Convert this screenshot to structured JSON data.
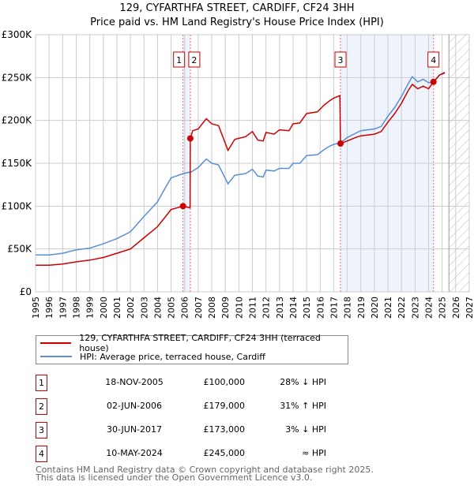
{
  "chart_data": {
    "type": "line",
    "title": "129, CYFARTHFA STREET, CARDIFF, CF24 3HH",
    "subtitle": "Price paid vs. HM Land Registry's House Price Index (HPI)",
    "xlim": [
      1995,
      2027
    ],
    "ylim": [
      0,
      300000
    ],
    "x_ticks": [
      "1995",
      "1996",
      "1997",
      "1998",
      "1999",
      "2000",
      "2001",
      "2002",
      "2003",
      "2004",
      "2005",
      "2006",
      "2007",
      "2008",
      "2009",
      "2010",
      "2011",
      "2012",
      "2013",
      "2014",
      "2015",
      "2016",
      "2017",
      "2018",
      "2019",
      "2020",
      "2021",
      "2022",
      "2023",
      "2024",
      "2025",
      "2026",
      "2027"
    ],
    "y_ticks": [
      {
        "v": 0,
        "label": "£0"
      },
      {
        "v": 50000,
        "label": "£50K"
      },
      {
        "v": 100000,
        "label": "£100K"
      },
      {
        "v": 150000,
        "label": "£150K"
      },
      {
        "v": 200000,
        "label": "£200K"
      },
      {
        "v": 250000,
        "label": "£250K"
      },
      {
        "v": 300000,
        "label": "£300K"
      }
    ],
    "grid": true,
    "forecast_hatch_from": 2025.5,
    "series": [
      {
        "name": "129, CYFARTHFA STREET, CARDIFF, CF24 3HH (terraced house)",
        "color": "#cc0000",
        "x": [
          1995,
          1996,
          1997,
          1998,
          1999,
          2000,
          2001,
          2002,
          2003,
          2004,
          2004.6,
          2005,
          2005.88,
          2006.4,
          2006.42,
          2006.6,
          2007,
          2007.6,
          2008,
          2008.5,
          2009.2,
          2009.7,
          2010.5,
          2011,
          2011.4,
          2011.8,
          2012,
          2012.6,
          2013,
          2013.7,
          2014,
          2014.5,
          2015,
          2015.8,
          2016.3,
          2016.7,
          2017,
          2017.45,
          2017.5,
          2018,
          2018.6,
          2019,
          2020,
          2020.5,
          2021,
          2021.5,
          2022,
          2022.5,
          2022.8,
          2023.2,
          2023.6,
          2024,
          2024.36,
          2024.8,
          2025.2
        ],
        "y": [
          31000,
          31000,
          32500,
          35000,
          37000,
          40000,
          45000,
          50000,
          63000,
          76000,
          88000,
          96000,
          100000,
          98000,
          179000,
          188000,
          190000,
          202000,
          196000,
          194000,
          165000,
          178000,
          181000,
          187000,
          177000,
          176000,
          186000,
          184000,
          189000,
          188000,
          196000,
          197000,
          208000,
          210000,
          218000,
          223000,
          226000,
          229000,
          173000,
          176000,
          180000,
          182000,
          184000,
          187000,
          198000,
          208000,
          220000,
          235000,
          242000,
          237000,
          240000,
          237000,
          245000,
          253000,
          256000
        ]
      },
      {
        "name": "HPI: Average price, terraced house, Cardiff",
        "color": "#5b8fd4",
        "x": [
          1995,
          1996,
          1997,
          1998,
          1999,
          2000,
          2001,
          2002,
          2003,
          2004,
          2004.6,
          2005,
          2005.9,
          2006.5,
          2007,
          2007.6,
          2008,
          2008.5,
          2009.2,
          2009.7,
          2010.5,
          2011,
          2011.4,
          2011.8,
          2012,
          2012.6,
          2013,
          2013.7,
          2014,
          2014.5,
          2015,
          2015.8,
          2016.3,
          2016.7,
          2017,
          2017.5,
          2018,
          2018.6,
          2019,
          2020,
          2020.5,
          2021,
          2021.5,
          2022,
          2022.5,
          2022.8,
          2023.2,
          2023.6,
          2024,
          2024.4,
          2024.8,
          2025.2
        ],
        "y": [
          43000,
          43000,
          45000,
          49000,
          51000,
          56000,
          62000,
          70000,
          88000,
          105000,
          122000,
          133000,
          138000,
          140000,
          145000,
          155000,
          150000,
          148000,
          126000,
          136000,
          138000,
          143000,
          135000,
          134000,
          142000,
          141000,
          144000,
          144000,
          150000,
          150000,
          159000,
          160000,
          166000,
          170000,
          172000,
          174000,
          180000,
          185000,
          188000,
          190000,
          193000,
          205000,
          215000,
          228000,
          243000,
          251000,
          245000,
          248000,
          244000,
          245000,
          253000,
          255000
        ]
      }
    ],
    "sales": [
      {
        "n": "1",
        "x": 2005.88,
        "y": 100000
      },
      {
        "n": "2",
        "x": 2006.42,
        "y": 179000
      },
      {
        "n": "3",
        "x": 2017.5,
        "y": 173000
      },
      {
        "n": "4",
        "x": 2024.36,
        "y": 245000
      }
    ]
  },
  "legend": [
    "129, CYFARTHFA STREET, CARDIFF, CF24 3HH (terraced house)",
    "HPI: Average price, terraced house, Cardiff"
  ],
  "table": [
    {
      "n": "1",
      "date": "18-NOV-2005",
      "price": "£100,000",
      "hpi": "28% ↓ HPI"
    },
    {
      "n": "2",
      "date": "02-JUN-2006",
      "price": "£179,000",
      "hpi": "31% ↑ HPI"
    },
    {
      "n": "3",
      "date": "30-JUN-2017",
      "price": "£173,000",
      "hpi": "3% ↓ HPI"
    },
    {
      "n": "4",
      "date": "10-MAY-2024",
      "price": "£245,000",
      "hpi": "≈ HPI"
    }
  ],
  "footer": {
    "line1": "Contains HM Land Registry data © Crown copyright and database right 2025.",
    "line2": "This data is licensed under the Open Government Licence v3.0."
  }
}
